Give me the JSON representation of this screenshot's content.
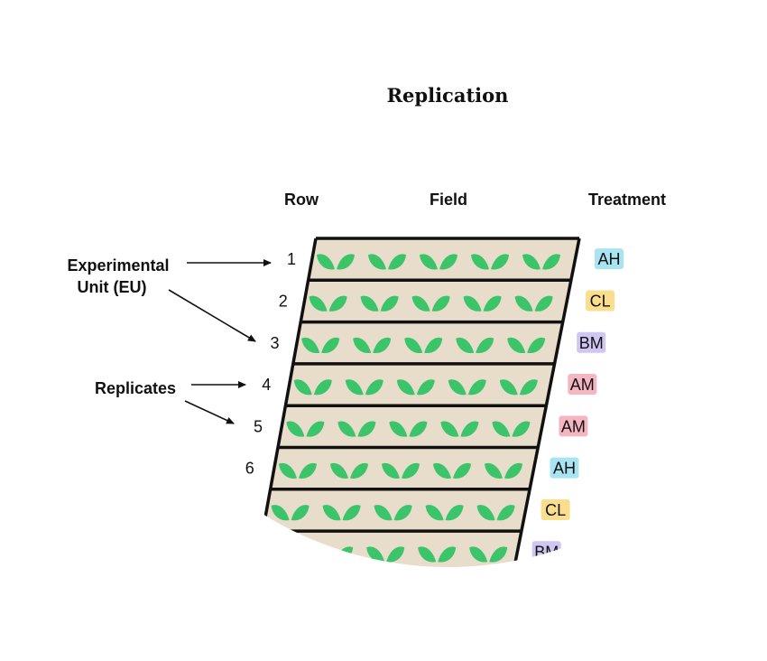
{
  "title": "Replication",
  "headers": {
    "row": "Row",
    "field": "Field",
    "treatment": "Treatment"
  },
  "annotations": {
    "eu_line1": "Experimental",
    "eu_line2": "Unit (EU)",
    "replicates": "Replicates"
  },
  "rows": [
    {
      "num": "1",
      "treatment": "AH"
    },
    {
      "num": "2",
      "treatment": "CL"
    },
    {
      "num": "3",
      "treatment": "BM"
    },
    {
      "num": "4",
      "treatment": "AM"
    },
    {
      "num": "5",
      "treatment": "AM"
    },
    {
      "num": "6",
      "treatment": "AH"
    },
    {
      "num": "",
      "treatment": "CL"
    },
    {
      "num": "",
      "treatment": "BM"
    }
  ],
  "colors": {
    "field": "#E8DCCB",
    "plant": "#3CC46A",
    "AH": "#A8E4F2",
    "CL": "#F9DE8E",
    "BM": "#CFC6F1",
    "AM": "#F5B6C1"
  },
  "icons": {
    "plant": "seedling-icon",
    "arrow": "arrow-icon"
  }
}
